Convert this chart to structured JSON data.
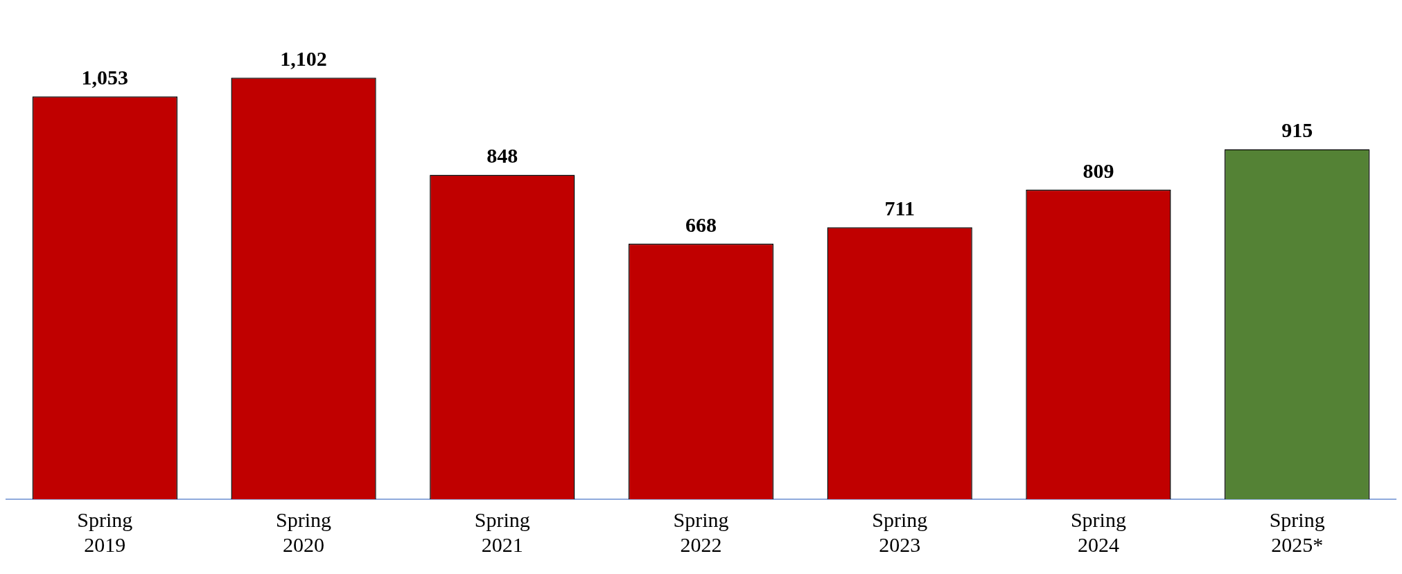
{
  "chart_data": {
    "type": "bar",
    "categories": [
      "Spring 2019",
      "Spring 2020",
      "Spring 2021",
      "Spring 2022",
      "Spring 2023",
      "Spring 2024",
      "Spring 2025*"
    ],
    "values": [
      1053,
      1102,
      848,
      668,
      711,
      809,
      915
    ],
    "colors": [
      "#c00000",
      "#c00000",
      "#c00000",
      "#c00000",
      "#c00000",
      "#c00000",
      "#548235"
    ],
    "value_labels": [
      "1,053",
      "1,102",
      "848",
      "668",
      "711",
      "809",
      "915"
    ],
    "grid": false,
    "legend": false
  }
}
